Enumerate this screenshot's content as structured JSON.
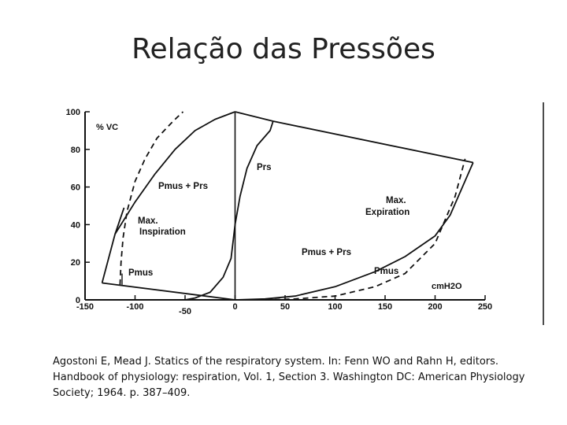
{
  "slide": {
    "title": "Relação das Pressões",
    "citation": "Agostoni E, Mead J. Statics of the respiratory system. In: Fenn WO and Rahn H, editors. Handbook of physiology: respiration, Vol. 1, Section 3. Washington DC: American Physiology Society; 1964. p. 387–409."
  },
  "chart_data": {
    "type": "line",
    "title": "",
    "xlabel": "cmH2O",
    "ylabel": "% VC",
    "xlim": [
      -150,
      250
    ],
    "ylim": [
      0,
      100
    ],
    "x_ticks": [
      -150,
      -100,
      -50,
      0,
      50,
      100,
      150,
      200,
      250
    ],
    "y_ticks": [
      0,
      20,
      40,
      60,
      80,
      100
    ],
    "grid": false,
    "legend": "none",
    "series": [
      {
        "name": "Prs",
        "style": "solid",
        "points": [
          [
            -50,
            0
          ],
          [
            -40,
            1
          ],
          [
            -25,
            4
          ],
          [
            -12,
            12
          ],
          [
            -4,
            22
          ],
          [
            0,
            40
          ],
          [
            5,
            55
          ],
          [
            12,
            70
          ],
          [
            22,
            82
          ],
          [
            35,
            90
          ],
          [
            38,
            95
          ]
        ]
      },
      {
        "name": "Pmus + Prs",
        "style": "solid",
        "points": [
          [
            -120,
            35
          ],
          [
            -100,
            52
          ],
          [
            -80,
            67
          ],
          [
            -60,
            80
          ],
          [
            -40,
            90
          ],
          [
            -20,
            96
          ],
          [
            0,
            100
          ]
        ]
      },
      {
        "name": "Pmus + Prs",
        "style": "solid",
        "points": [
          [
            0,
            0
          ],
          [
            30,
            0.5
          ],
          [
            60,
            2
          ],
          [
            100,
            7
          ],
          [
            140,
            15
          ],
          [
            170,
            23
          ],
          [
            200,
            34
          ],
          [
            215,
            45
          ],
          [
            238,
            73
          ]
        ]
      },
      {
        "name": "Max. Inspiration",
        "style": "solid",
        "points": [
          [
            -133,
            9
          ],
          [
            -120,
            35
          ],
          [
            -111,
            49
          ]
        ]
      },
      {
        "name": "Max. Expiration",
        "style": "solid",
        "points": [
          [
            0,
            100
          ],
          [
            38,
            95
          ],
          [
            238,
            73
          ]
        ]
      },
      {
        "name": "Pmus",
        "style": "dashed",
        "points": [
          [
            -115,
            8
          ],
          [
            -114,
            20
          ],
          [
            -112,
            33
          ],
          [
            -108,
            47
          ],
          [
            -100,
            63
          ],
          [
            -90,
            75
          ],
          [
            -78,
            86
          ],
          [
            -62,
            95
          ],
          [
            -52,
            100
          ]
        ]
      },
      {
        "name": "Pmus",
        "style": "dashed",
        "points": [
          [
            30,
            0
          ],
          [
            60,
            0.5
          ],
          [
            100,
            2
          ],
          [
            140,
            7
          ],
          [
            170,
            14
          ],
          [
            200,
            30
          ],
          [
            220,
            55
          ],
          [
            230,
            75
          ]
        ]
      }
    ],
    "annotations": [
      "Prs",
      "Pmus + Prs",
      "Max. Inspiration",
      "Max. Expiration",
      "Pmus + Prs",
      "Pmus",
      "Pmus"
    ]
  }
}
